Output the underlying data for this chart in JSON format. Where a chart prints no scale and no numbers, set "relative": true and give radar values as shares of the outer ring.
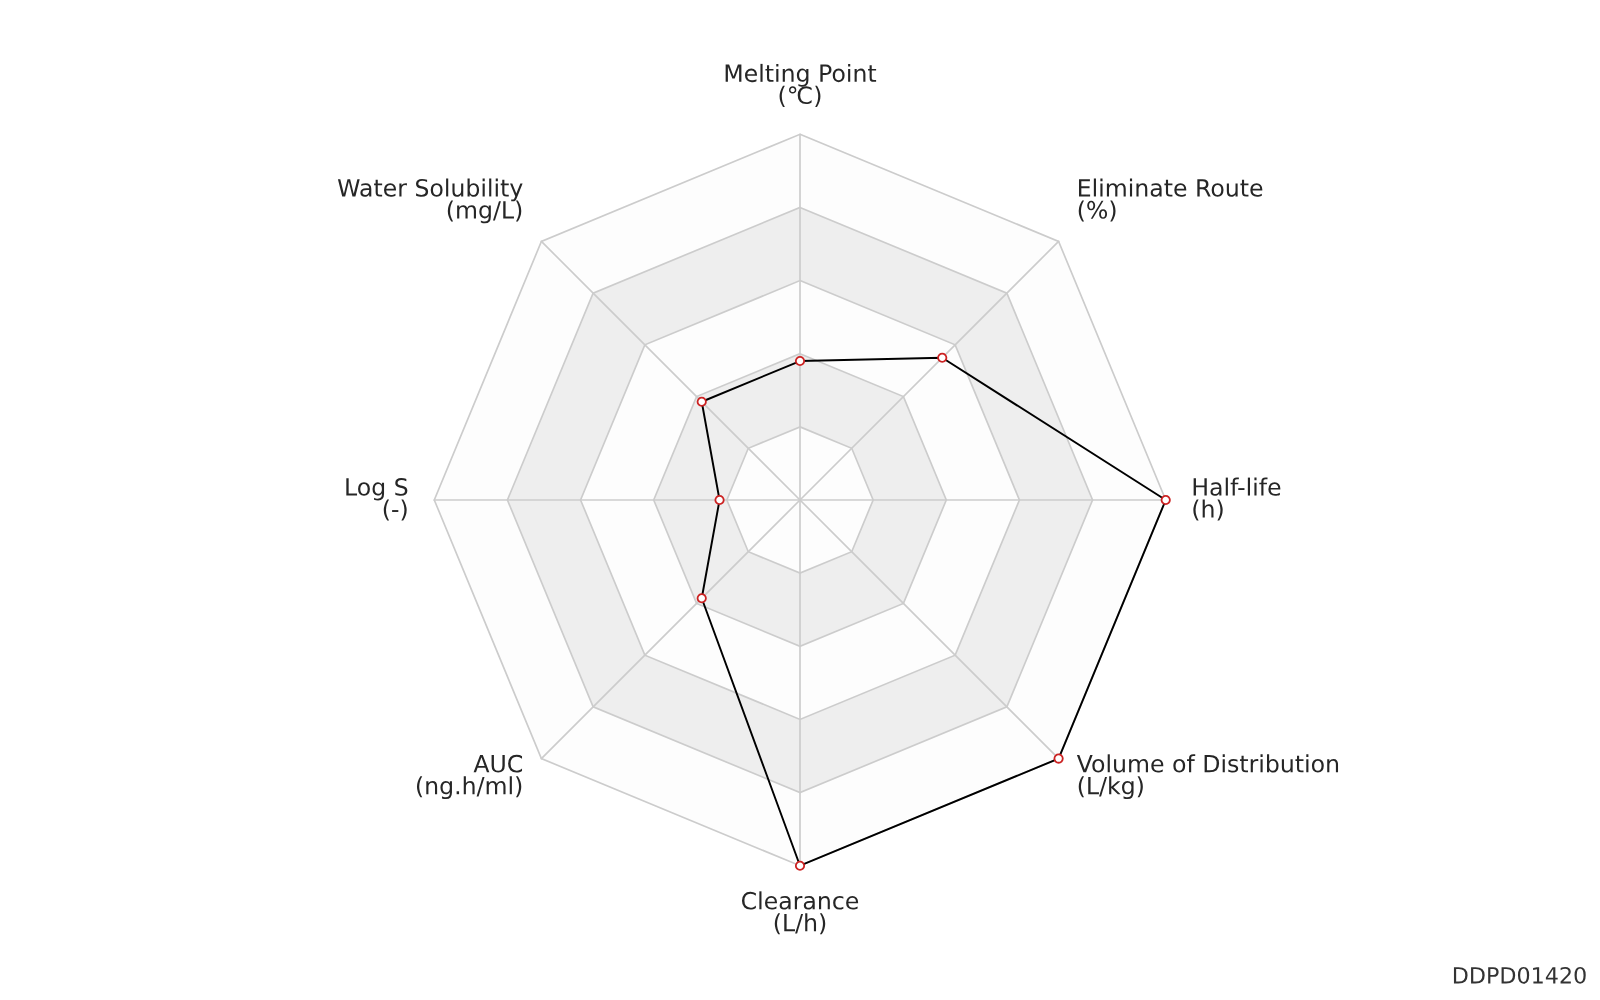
{
  "chart_data": {
    "type": "radar",
    "relative": true,
    "grid": true,
    "marker": "circle",
    "line_style": "solid",
    "categories": [
      "Melting Point\n(℃)",
      "Eliminate Route\n(%)",
      "Half-life\n(h)",
      "Volume of Distribution\n(L/kg)",
      "Clearance\n(L/h)",
      "AUC\n(ng.h/ml)",
      "Log S\n(-)",
      "Water Solubility\n(mg/L)"
    ],
    "series": [
      {
        "color": "#000000",
        "values": [
          0.38,
          0.55,
          1.0,
          1.0,
          1.0,
          0.38,
          0.22,
          0.38
        ]
      }
    ],
    "annotations": [
      "DDPD01420"
    ]
  }
}
